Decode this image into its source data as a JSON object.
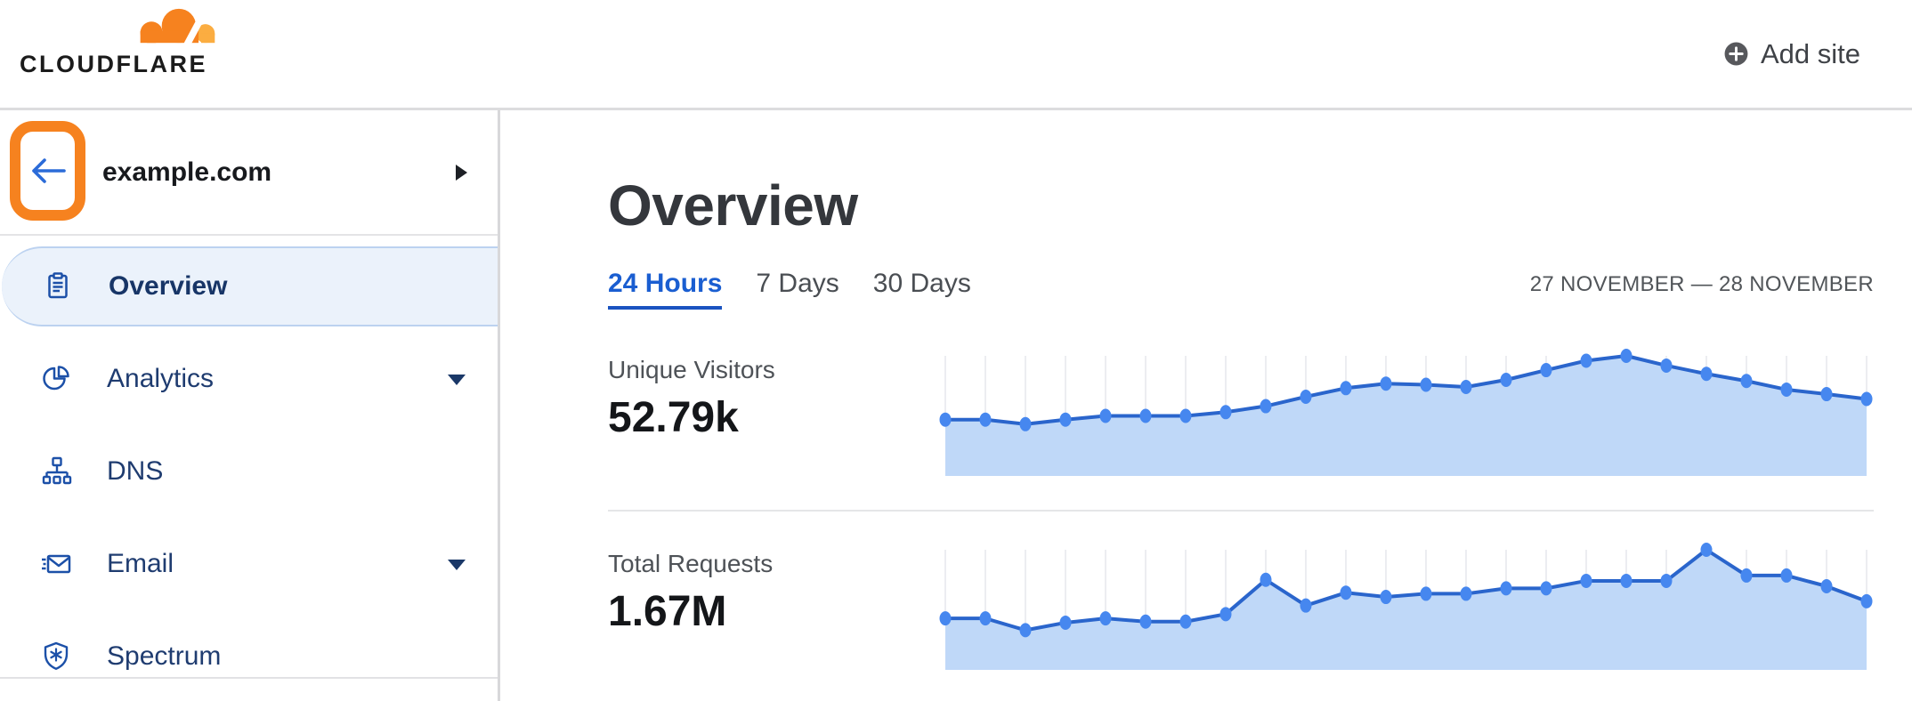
{
  "topbar": {
    "logo_text": "CLOUDFLARE",
    "add_site_label": "Add site"
  },
  "sidebar": {
    "site": "example.com",
    "items": [
      {
        "label": "Overview",
        "icon": "clipboard-icon",
        "selected": true,
        "has_submenu": false
      },
      {
        "label": "Analytics",
        "icon": "pie-chart-icon",
        "selected": false,
        "has_submenu": true
      },
      {
        "label": "DNS",
        "icon": "dns-tree-icon",
        "selected": false,
        "has_submenu": false
      },
      {
        "label": "Email",
        "icon": "email-icon",
        "selected": false,
        "has_submenu": true
      },
      {
        "label": "Spectrum",
        "icon": "spectrum-shield-icon",
        "selected": false,
        "has_submenu": false
      }
    ]
  },
  "main": {
    "title": "Overview",
    "tabs": [
      {
        "label": "24 Hours",
        "active": true
      },
      {
        "label": "7 Days",
        "active": false
      },
      {
        "label": "30 Days",
        "active": false
      }
    ],
    "date_range": "27 NOVEMBER — 28 NOVEMBER",
    "metrics": [
      {
        "label": "Unique Visitors",
        "value": "52.79k"
      },
      {
        "label": "Total Requests",
        "value": "1.67M"
      }
    ]
  },
  "colors": {
    "brand_orange": "#f6821f",
    "brand_orange_light": "#fbad41",
    "annotation_highlight": "#f6821f",
    "link_blue": "#1a5ed1",
    "sidebar_navy": "#1f3c70",
    "sidebar_icon_blue": "#1c50a8",
    "selected_item_bg": "#ebf2fb",
    "chart_dot": "#4687ef",
    "chart_line": "#2a65cc",
    "chart_fill": "#bfd8f8",
    "chart_gridline": "#ecedf1",
    "divider_gray": "#dcdcde"
  },
  "chart_data": [
    {
      "type": "area",
      "title": "Unique Visitors",
      "total_display": "52.79k",
      "x": "hours over 27 November — 28 November (24 points, unlabeled axis)",
      "unit": "thousands of visitors per hour (estimated from sparkline)",
      "grid": "vertical gridlines per point, no axis labels",
      "legend": "none",
      "values": [
        1.5,
        1.5,
        1.38,
        1.5,
        1.6,
        1.6,
        1.6,
        1.7,
        1.86,
        2.11,
        2.34,
        2.46,
        2.43,
        2.37,
        2.56,
        2.82,
        3.07,
        3.2,
        2.94,
        2.72,
        2.53,
        2.3,
        2.18,
        2.05
      ]
    },
    {
      "type": "area",
      "title": "Total Requests",
      "total_display": "1.67M",
      "x": "hours over 27 November — 28 November (24 points, unlabeled axis)",
      "unit": "millions of requests per hour (estimated from sparkline)",
      "grid": "vertical gridlines per point, no axis labels",
      "legend": "none",
      "values": [
        0.048,
        0.048,
        0.037,
        0.044,
        0.048,
        0.045,
        0.045,
        0.052,
        0.084,
        0.06,
        0.072,
        0.068,
        0.071,
        0.071,
        0.076,
        0.076,
        0.083,
        0.083,
        0.083,
        0.112,
        0.088,
        0.088,
        0.078,
        0.064
      ]
    }
  ]
}
